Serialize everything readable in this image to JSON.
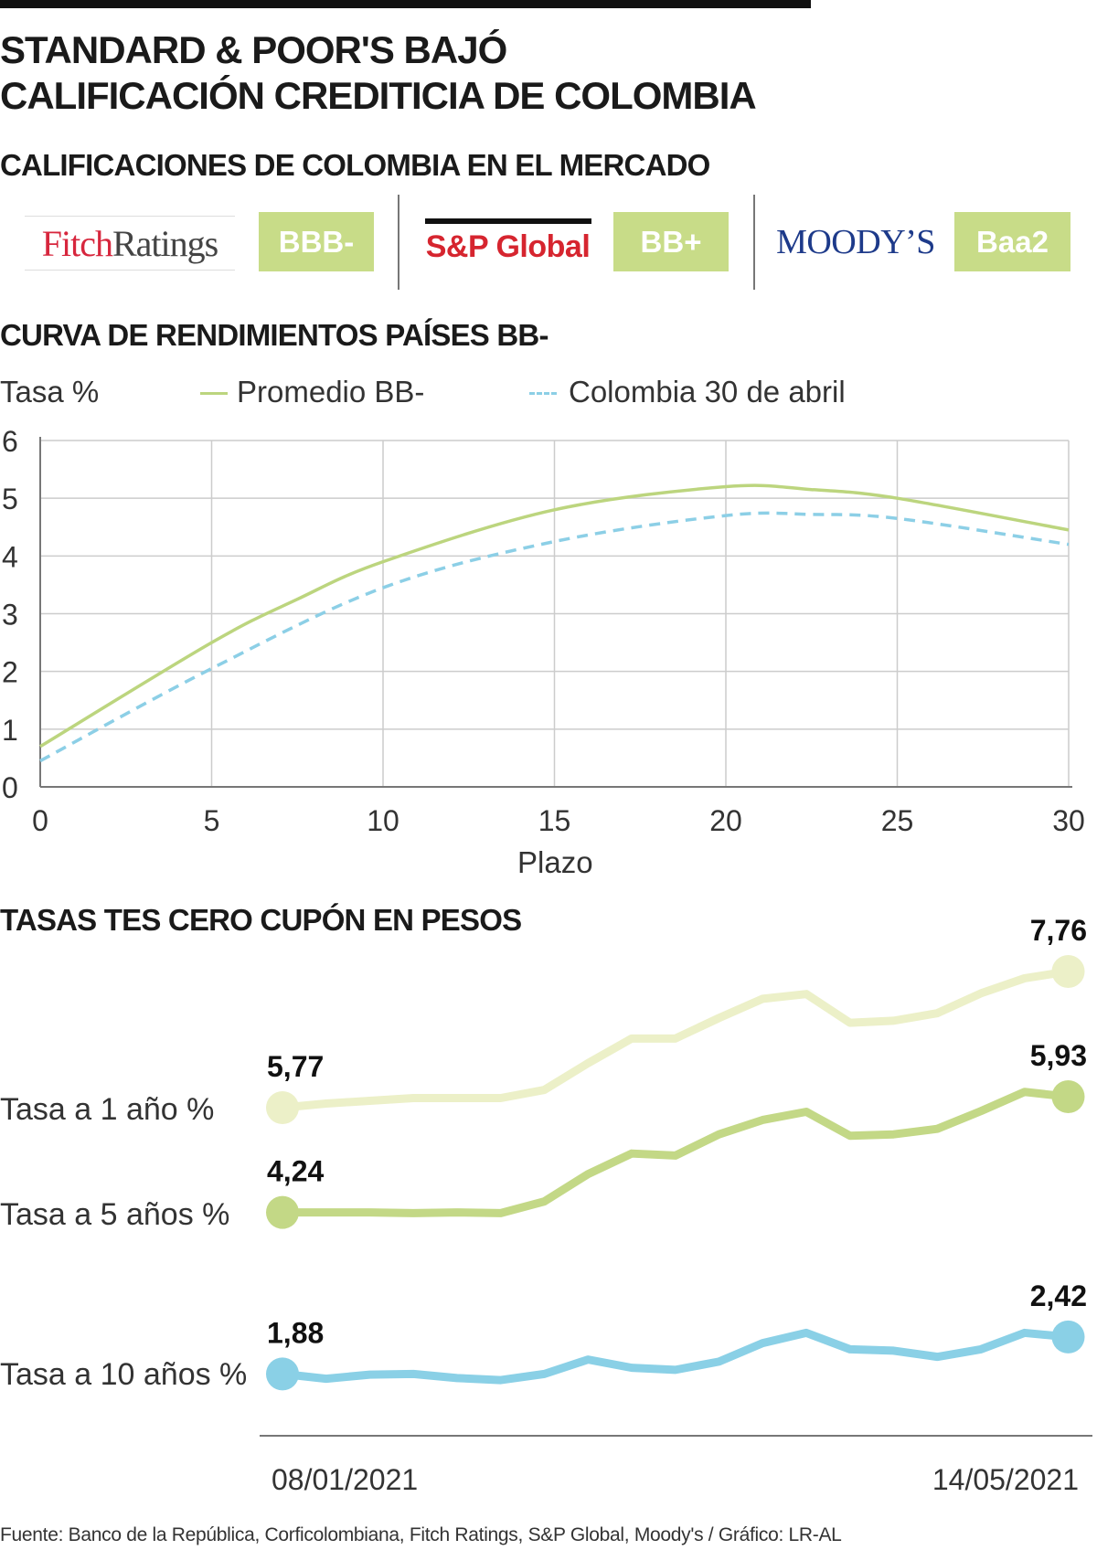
{
  "header": {
    "title_line1": "STANDARD & POOR'S BAJÓ",
    "title_line2": "CALIFICACIÓN CREDITICIA DE COLOMBIA",
    "ratings_title": "CALIFICACIONES DE COLOMBIA EN EL MERCADO"
  },
  "ratings": [
    {
      "agency": "FitchRatings",
      "agency_part1": "Fitch",
      "agency_part2": "Ratings",
      "rating": "BBB-"
    },
    {
      "agency": "S&P Global",
      "rating": "BB+"
    },
    {
      "agency": "Moody's",
      "agency_display": "MOODY’S",
      "rating": "Baa2"
    }
  ],
  "colors": {
    "accent_badge": "#c8dc88",
    "promedio": "#bcd57e",
    "colombia": "#8ccfe6",
    "tasa1": "#ecf0c8",
    "tasa5": "#c3d886",
    "tasa10": "#8ad0e6"
  },
  "chart_data": [
    {
      "type": "line",
      "title": "CURVA DE RENDIMIENTOS PAÍSES BB-",
      "ylabel": "Tasa %",
      "xlabel": "Plazo",
      "xlim": [
        0,
        30
      ],
      "ylim": [
        0,
        6
      ],
      "xticks": [
        "0",
        "5",
        "10",
        "15",
        "20",
        "25",
        "30"
      ],
      "yticks": [
        "0",
        "1",
        "2",
        "3",
        "4",
        "5",
        "6"
      ],
      "grid": true,
      "legend_placement": "top",
      "series": [
        {
          "name": "Promedio BB-",
          "style": "solid",
          "x": [
            0,
            5,
            7.5,
            10,
            15,
            20,
            22.5,
            25,
            30
          ],
          "y": [
            0.7,
            2.5,
            3.25,
            3.9,
            4.8,
            5.2,
            5.15,
            5.0,
            4.45
          ]
        },
        {
          "name": "Colombia 30 de abril",
          "style": "dashed",
          "x": [
            0,
            5,
            10,
            15,
            20,
            22.5,
            25,
            30
          ],
          "y": [
            0.45,
            2.05,
            3.45,
            4.25,
            4.7,
            4.72,
            4.65,
            4.2
          ]
        }
      ]
    },
    {
      "type": "line",
      "title": "TASAS TES CERO CUPÓN EN PESOS",
      "x_start_label": "08/01/2021",
      "x_end_label": "14/05/2021",
      "series": [
        {
          "name": "Tasa a 1 año %",
          "start_label": "5,77",
          "end_label": "7,76",
          "values": [
            5.77,
            5.83,
            5.87,
            5.91,
            5.91,
            5.91,
            6.03,
            6.42,
            6.78,
            6.78,
            7.08,
            7.36,
            7.43,
            7.01,
            7.04,
            7.15,
            7.44,
            7.66,
            7.76
          ]
        },
        {
          "name": "Tasa a 5 años %",
          "start_label": "4,24",
          "end_label": "5,93",
          "values": [
            4.24,
            4.24,
            4.24,
            4.23,
            4.24,
            4.23,
            4.4,
            4.8,
            5.1,
            5.07,
            5.38,
            5.59,
            5.71,
            5.36,
            5.38,
            5.46,
            5.72,
            6.0,
            5.93
          ]
        },
        {
          "name": "Tasa a 10 años %",
          "start_label": "1,88",
          "end_label": "2,42",
          "values": [
            1.88,
            1.81,
            1.87,
            1.88,
            1.82,
            1.79,
            1.88,
            2.09,
            1.97,
            1.94,
            2.06,
            2.33,
            2.48,
            2.24,
            2.22,
            2.13,
            2.24,
            2.48,
            2.42
          ]
        }
      ]
    }
  ],
  "footer": "Fuente: Banco de la República, Corficolombiana, Fitch Ratings, S&P Global, Moody's / Gráfico: LR-AL"
}
